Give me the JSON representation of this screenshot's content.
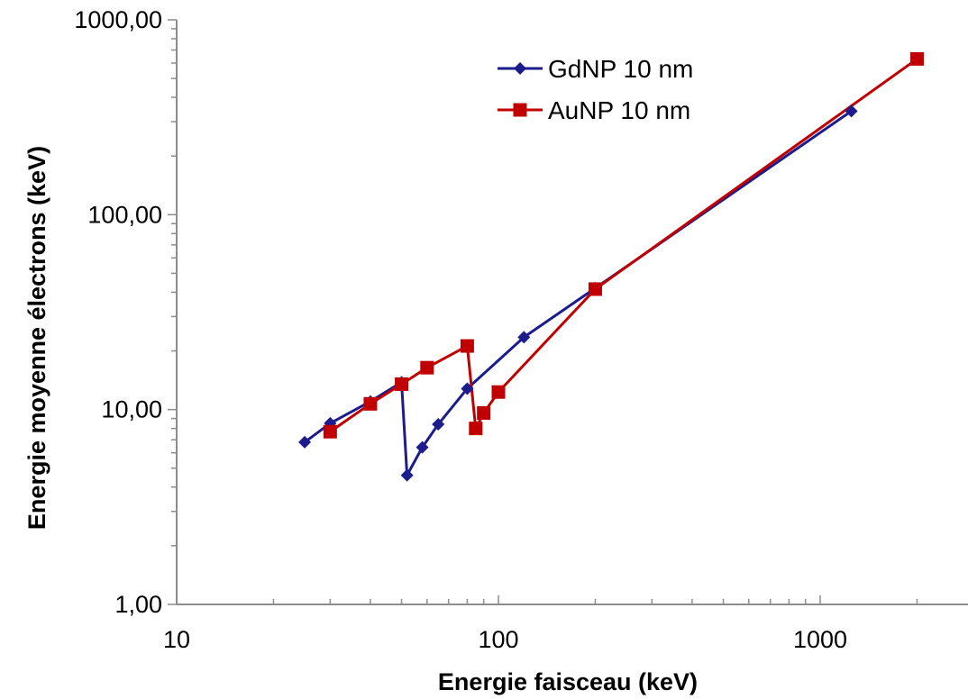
{
  "chart_data": {
    "type": "line",
    "xscale": "log",
    "yscale": "log",
    "xlim": [
      10,
      3000
    ],
    "ylim": [
      1,
      1000
    ],
    "xlabel": "Energie faisceau (keV)",
    "ylabel": "Energie moyenne électrons (keV)",
    "x_ticks": [
      {
        "value": 10,
        "label": "10"
      },
      {
        "value": 100,
        "label": "100"
      },
      {
        "value": 1000,
        "label": "1000"
      }
    ],
    "y_ticks": [
      {
        "value": 1,
        "label": "1,00"
      },
      {
        "value": 10,
        "label": "10,00"
      },
      {
        "value": 100,
        "label": "100,00"
      },
      {
        "value": 1000,
        "label": "1000,00"
      }
    ],
    "grid": false,
    "legend": "top-center",
    "series": [
      {
        "name": "GdNP 10 nm",
        "color": "#1c1c8c",
        "marker": "diamond",
        "x": [
          25,
          30,
          40,
          50,
          52,
          58,
          65,
          80,
          120,
          200,
          1250
        ],
        "y": [
          6.8,
          8.5,
          11.0,
          13.8,
          4.6,
          6.4,
          8.4,
          12.8,
          23.5,
          42,
          340
        ]
      },
      {
        "name": "AuNP 10 nm",
        "color": "#c00000",
        "marker": "square",
        "x": [
          30,
          40,
          50,
          60,
          80,
          85,
          90,
          100,
          200,
          2000
        ],
        "y": [
          7.7,
          10.7,
          13.5,
          16.4,
          21.2,
          8.0,
          9.6,
          12.3,
          41.5,
          630
        ]
      }
    ]
  }
}
